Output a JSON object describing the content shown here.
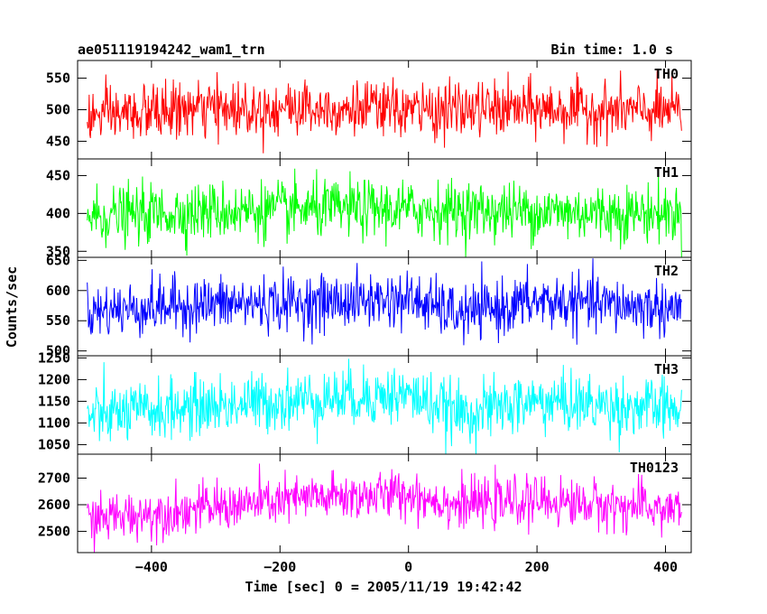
{
  "chart_data": {
    "type": "line",
    "title_left": "ae051119194242_wam1_trn",
    "title_right": "Bin time: 1.0 s",
    "xlabel": "Time [sec] 0 = 2005/11/19 19:42:42",
    "ylabel": "Counts/sec",
    "xlim": [
      -515,
      440
    ],
    "x_range": [
      -500,
      425
    ],
    "bin_time": 1.0,
    "xticks": [
      -400,
      -200,
      0,
      200,
      400
    ],
    "xtick_labels": [
      "−400",
      "−200",
      "0",
      "200",
      "400"
    ],
    "panels": [
      {
        "name": "TH0",
        "color": "#ff0000",
        "ylim": [
          422,
          578
        ],
        "yticks": [
          450,
          500,
          550
        ],
        "ytick_labels": [
          "450",
          "500",
          "550"
        ],
        "mean": 500,
        "trend": [
          [
            -500,
            488
          ],
          [
            -350,
            500
          ],
          [
            -150,
            504
          ],
          [
            0,
            499
          ],
          [
            200,
            501
          ],
          [
            425,
            496
          ]
        ],
        "noise_sigma": 22,
        "max_value": 578,
        "min_value": 422
      },
      {
        "name": "TH1",
        "color": "#00ff00",
        "ylim": [
          342,
          472
        ],
        "yticks": [
          350,
          400,
          450
        ],
        "ytick_labels": [
          "350",
          "400",
          "450"
        ],
        "mean": 402,
        "trend": [
          [
            -500,
            396
          ],
          [
            -300,
            403
          ],
          [
            -100,
            406
          ],
          [
            100,
            404
          ],
          [
            300,
            401
          ],
          [
            425,
            400
          ]
        ],
        "noise_sigma": 19,
        "max_value": 472,
        "min_value": 342
      },
      {
        "name": "TH2",
        "color": "#0000ff",
        "ylim": [
          492,
          655
        ],
        "yticks": [
          500,
          550,
          600,
          650
        ],
        "ytick_labels": [
          "500",
          "550",
          "600",
          "650"
        ],
        "mean": 575,
        "trend": [
          [
            -500,
            565
          ],
          [
            -350,
            576
          ],
          [
            -150,
            580
          ],
          [
            0,
            586
          ],
          [
            80,
            560
          ],
          [
            200,
            582
          ],
          [
            425,
            570
          ]
        ],
        "noise_sigma": 23,
        "max_value": 655,
        "min_value": 492
      },
      {
        "name": "TH3",
        "color": "#00ffff",
        "ylim": [
          1028,
          1255
        ],
        "yticks": [
          1050,
          1100,
          1150,
          1200,
          1250
        ],
        "ytick_labels": [
          "1050",
          "1100",
          "1150",
          "1200",
          "1250"
        ],
        "mean": 1135,
        "trend": [
          [
            -500,
            1115
          ],
          [
            -300,
            1140
          ],
          [
            -100,
            1160
          ],
          [
            0,
            1165
          ],
          [
            80,
            1120
          ],
          [
            200,
            1150
          ],
          [
            425,
            1130
          ]
        ],
        "noise_sigma": 34,
        "max_value": 1255,
        "min_value": 1028
      },
      {
        "name": "TH0123",
        "color": "#ff00ff",
        "ylim": [
          2420,
          2790
        ],
        "yticks": [
          2500,
          2600,
          2700
        ],
        "ytick_labels": [
          "2500",
          "2600",
          "2700"
        ],
        "mean": 2590,
        "trend": [
          [
            -500,
            2545
          ],
          [
            -300,
            2590
          ],
          [
            -150,
            2625
          ],
          [
            0,
            2640
          ],
          [
            80,
            2600
          ],
          [
            200,
            2615
          ],
          [
            425,
            2580
          ]
        ],
        "noise_sigma": 45,
        "max_value": 2790,
        "min_value": 2420
      }
    ]
  }
}
